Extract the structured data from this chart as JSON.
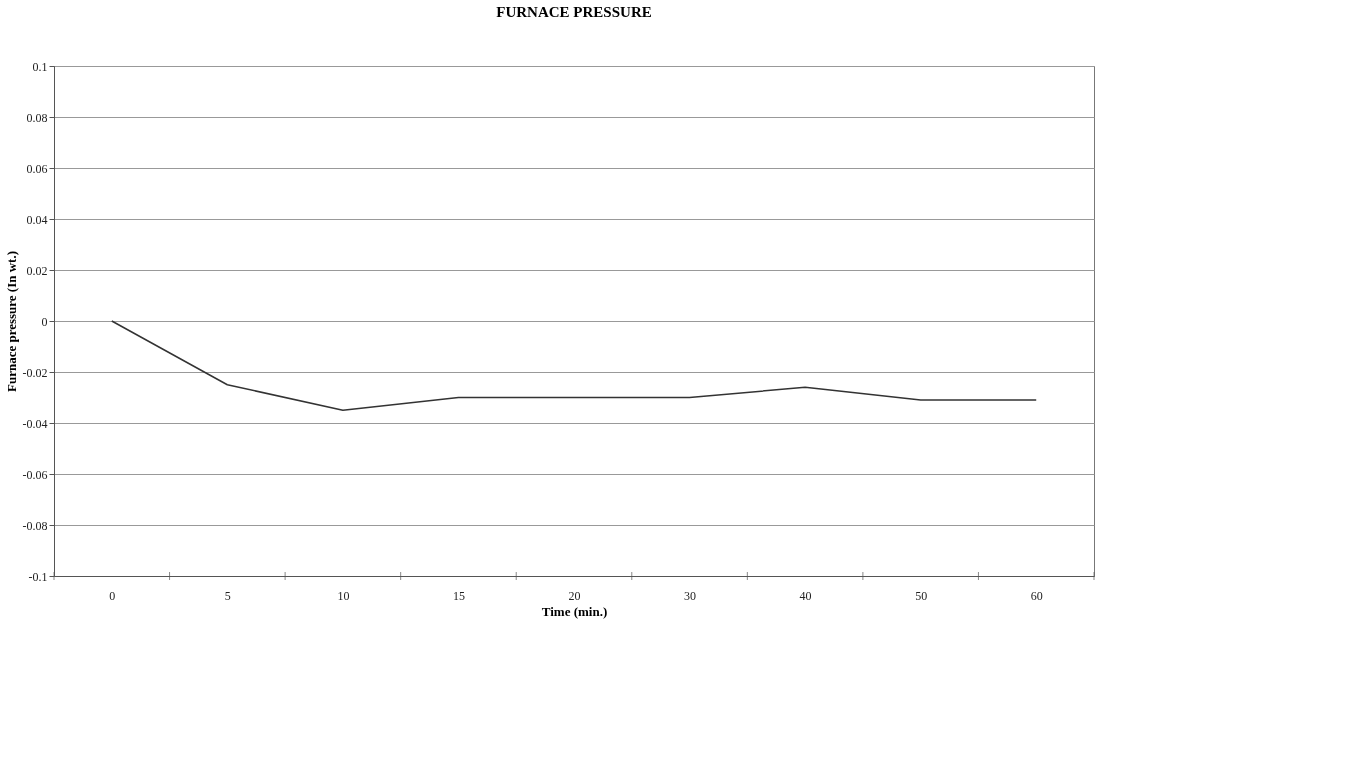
{
  "chart_data": {
    "type": "line",
    "title": "FURNACE PRESSURE",
    "xlabel": "Time (min.)",
    "ylabel": "Furnace pressure (In wt.)",
    "categories": [
      "0",
      "5",
      "10",
      "15",
      "20",
      "30",
      "40",
      "50",
      "60"
    ],
    "series": [
      {
        "color": "#333333",
        "values": [
          0,
          -0.025,
          -0.035,
          -0.03,
          -0.03,
          -0.03,
          -0.026,
          -0.031,
          -0.031
        ]
      }
    ],
    "ylim": [
      -0.1,
      0.1
    ],
    "yticks": [
      -0.1,
      -0.08,
      -0.06,
      -0.04,
      -0.02,
      0,
      0.02,
      0.04,
      0.06,
      0.08,
      0.1
    ],
    "grid": "y",
    "marker": "none",
    "line_style": "solid"
  }
}
